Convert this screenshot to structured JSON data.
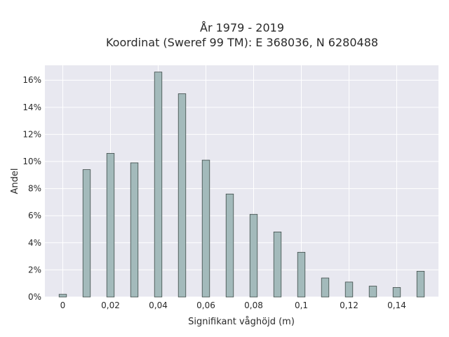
{
  "chart_data": {
    "type": "bar",
    "title_line1": "År 1979 - 2019",
    "title_line2": "Koordinat (Sweref 99 TM): E 368036, N 6280488",
    "xlabel": "Signifikant våghöjd (m)",
    "ylabel": "Andel",
    "x": [
      0,
      0.01,
      0.02,
      0.03,
      0.04,
      0.05,
      0.06,
      0.07,
      0.08,
      0.09,
      0.1,
      0.11,
      0.12,
      0.13,
      0.14,
      0.15
    ],
    "values": [
      0.2,
      9.4,
      10.6,
      9.9,
      16.6,
      15.0,
      10.1,
      7.6,
      6.1,
      4.8,
      3.3,
      1.4,
      1.1,
      0.8,
      0.7,
      1.9
    ],
    "x_ticks": [
      {
        "value": 0,
        "label": "0"
      },
      {
        "value": 0.02,
        "label": "0,02"
      },
      {
        "value": 0.04,
        "label": "0,04"
      },
      {
        "value": 0.06,
        "label": "0,06"
      },
      {
        "value": 0.08,
        "label": "0,08"
      },
      {
        "value": 0.1,
        "label": "0,1"
      },
      {
        "value": 0.12,
        "label": "0,12"
      },
      {
        "value": 0.14,
        "label": "0,14"
      }
    ],
    "y_ticks": [
      {
        "value": 0,
        "label": "0%"
      },
      {
        "value": 2,
        "label": "2%"
      },
      {
        "value": 4,
        "label": "4%"
      },
      {
        "value": 6,
        "label": "6%"
      },
      {
        "value": 8,
        "label": "8%"
      },
      {
        "value": 10,
        "label": "10%"
      },
      {
        "value": 12,
        "label": "12%"
      },
      {
        "value": 14,
        "label": "14%"
      },
      {
        "value": 16,
        "label": "16%"
      }
    ],
    "xlim": [
      -0.0075,
      0.1575
    ],
    "ylim": [
      0,
      17.1
    ],
    "grid": true,
    "colors": {
      "bar_fill": "#a3babb",
      "bar_stroke": "#3e4a48",
      "plot_background": "#e8e8f0",
      "grid": "#ffffff"
    }
  }
}
